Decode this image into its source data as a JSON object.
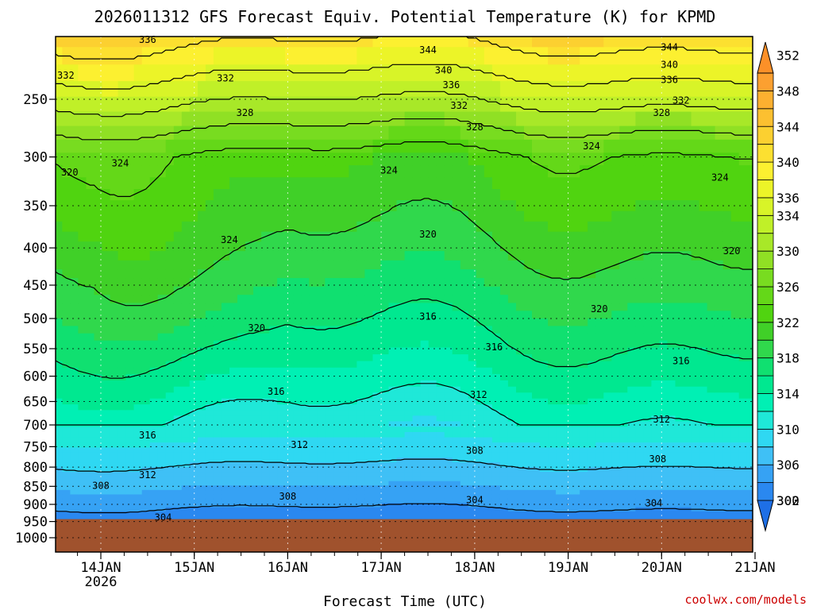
{
  "chart_data": {
    "type": "heatmap",
    "title": "2026011312 GFS Forecast Equiv. Potential Temperature (K) for KPMD",
    "xlabel": "Forecast Time (UTC)",
    "ylabel": "",
    "credit": "coolwx.com/models",
    "x_ticks": [
      {
        "label": "14JAN",
        "sublabel": "2026",
        "t": 12
      },
      {
        "label": "15JAN",
        "sublabel": "",
        "t": 36
      },
      {
        "label": "16JAN",
        "sublabel": "",
        "t": 60
      },
      {
        "label": "17JAN",
        "sublabel": "",
        "t": 84
      },
      {
        "label": "18JAN",
        "sublabel": "",
        "t": 108
      },
      {
        "label": "19JAN",
        "sublabel": "",
        "t": 132
      },
      {
        "label": "20JAN",
        "sublabel": "",
        "t": 156
      },
      {
        "label": "21JAN",
        "sublabel": "",
        "t": 180
      }
    ],
    "x_range_hours": [
      0,
      180
    ],
    "y_ticks": [
      250,
      300,
      350,
      400,
      450,
      500,
      550,
      600,
      650,
      700,
      750,
      800,
      850,
      900,
      950,
      1000
    ],
    "y_range_hpa": [
      200,
      1050
    ],
    "y_scale": "log",
    "ground_pressure_hpa": 943,
    "grid": true,
    "colorbar": {
      "levels": [
        300,
        302,
        304,
        306,
        308,
        310,
        312,
        314,
        316,
        318,
        320,
        322,
        324,
        326,
        328,
        330,
        332,
        334,
        336,
        338,
        340,
        342,
        344,
        346,
        348,
        350,
        352
      ],
      "labels": [
        300,
        302,
        306,
        310,
        314,
        318,
        322,
        326,
        330,
        334,
        336,
        340,
        344,
        348,
        352
      ],
      "colors": [
        "#1e6fe6",
        "#2a88f0",
        "#36a2f4",
        "#3fc0f6",
        "#2fd8f2",
        "#1fe8d8",
        "#00f0b4",
        "#00e890",
        "#10e070",
        "#30d84c",
        "#40d028",
        "#50d410",
        "#64d818",
        "#78dc20",
        "#90e024",
        "#a8e828",
        "#c0f028",
        "#d8f428",
        "#ecf428",
        "#fcf030",
        "#fce030",
        "#fcd030",
        "#fcc030",
        "#fcb030",
        "#fca030",
        "#fc9028"
      ]
    },
    "contour_labels": [
      {
        "value": "336",
        "t": 24,
        "p": 207
      },
      {
        "value": "332",
        "t": 3,
        "p": 232
      },
      {
        "value": "332",
        "t": 44,
        "p": 234
      },
      {
        "value": "328",
        "t": 49,
        "p": 261
      },
      {
        "value": "324",
        "t": 17,
        "p": 306
      },
      {
        "value": "320",
        "t": 4,
        "p": 315
      },
      {
        "value": "324",
        "t": 45,
        "p": 390
      },
      {
        "value": "320",
        "t": 52,
        "p": 515
      },
      {
        "value": "316",
        "t": 57,
        "p": 630
      },
      {
        "value": "316",
        "t": 24,
        "p": 723
      },
      {
        "value": "312",
        "t": 63,
        "p": 745
      },
      {
        "value": "312",
        "t": 24,
        "p": 820
      },
      {
        "value": "308",
        "t": 12,
        "p": 848
      },
      {
        "value": "308",
        "t": 60,
        "p": 878
      },
      {
        "value": "304",
        "t": 28,
        "p": 938
      },
      {
        "value": "344",
        "t": 96,
        "p": 214
      },
      {
        "value": "340",
        "t": 100,
        "p": 228
      },
      {
        "value": "336",
        "t": 102,
        "p": 239
      },
      {
        "value": "332",
        "t": 104,
        "p": 255
      },
      {
        "value": "328",
        "t": 108,
        "p": 273
      },
      {
        "value": "324",
        "t": 86,
        "p": 313
      },
      {
        "value": "320",
        "t": 96,
        "p": 383
      },
      {
        "value": "316",
        "t": 96,
        "p": 497
      },
      {
        "value": "316",
        "t": 113,
        "p": 547
      },
      {
        "value": "312",
        "t": 109,
        "p": 636
      },
      {
        "value": "308",
        "t": 108,
        "p": 760
      },
      {
        "value": "304",
        "t": 108,
        "p": 888
      },
      {
        "value": "344",
        "t": 158,
        "p": 212
      },
      {
        "value": "340",
        "t": 158,
        "p": 224
      },
      {
        "value": "336",
        "t": 158,
        "p": 235
      },
      {
        "value": "332",
        "t": 161,
        "p": 251
      },
      {
        "value": "328",
        "t": 156,
        "p": 261
      },
      {
        "value": "324",
        "t": 138,
        "p": 290
      },
      {
        "value": "324",
        "t": 171,
        "p": 320
      },
      {
        "value": "320",
        "t": 174,
        "p": 404
      },
      {
        "value": "320",
        "t": 140,
        "p": 485
      },
      {
        "value": "316",
        "t": 161,
        "p": 572
      },
      {
        "value": "312",
        "t": 156,
        "p": 688
      },
      {
        "value": "308",
        "t": 155,
        "p": 780
      },
      {
        "value": "304",
        "t": 154,
        "p": 897
      }
    ]
  }
}
